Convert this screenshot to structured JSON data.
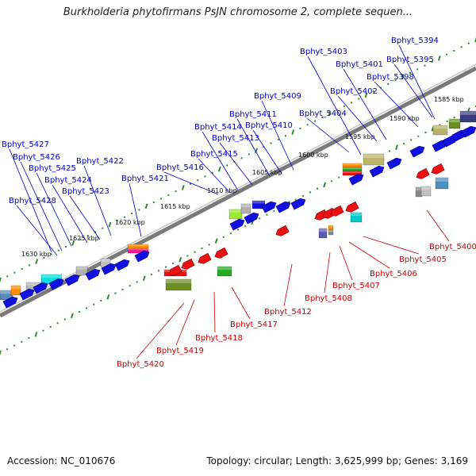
{
  "title": "Burkholderia phytofirmans PsJN chromosome 2, complete sequen...",
  "footer": {
    "accession": "Accession: NC_010676",
    "summary": "Topology: circular; Length: 3,625,999 bp; Genes: 3,169"
  },
  "colors": {
    "forward_label": "#0000cc",
    "reverse_label": "#cc0000",
    "backbone": "#7a7a7a",
    "tick": "#2e8b2e"
  },
  "scale_labels": [
    "1585 kbp",
    "1590 kbp",
    "1595 kbp",
    "1600 kbp",
    "1605 kbp",
    "1610 kbp",
    "1615 kbp",
    "1620 kbp",
    "1625 kbp",
    "1630 kbp"
  ],
  "forward_genes": [
    "Bphyt_5394",
    "Bphyt_5395",
    "Bphyt_5398",
    "Bphyt_5401",
    "Bphyt_5402",
    "Bphyt_5403",
    "Bphyt_5404",
    "Bphyt_5409",
    "Bphyt_5410",
    "Bphyt_5411",
    "Bphyt_5413",
    "Bphyt_5414",
    "Bphyt_5415",
    "Bphyt_5416",
    "Bphyt_5421",
    "Bphyt_5422",
    "Bphyt_5423",
    "Bphyt_5424",
    "Bphyt_5425",
    "Bphyt_5426",
    "Bphyt_5427",
    "Bphyt_5428"
  ],
  "reverse_genes": [
    "Bphyt_5400",
    "Bphyt_5405",
    "Bphyt_5406",
    "Bphyt_5407",
    "Bphyt_5408",
    "Bphyt_5412",
    "Bphyt_5417",
    "Bphyt_5418",
    "Bphyt_5419",
    "Bphyt_5420"
  ]
}
